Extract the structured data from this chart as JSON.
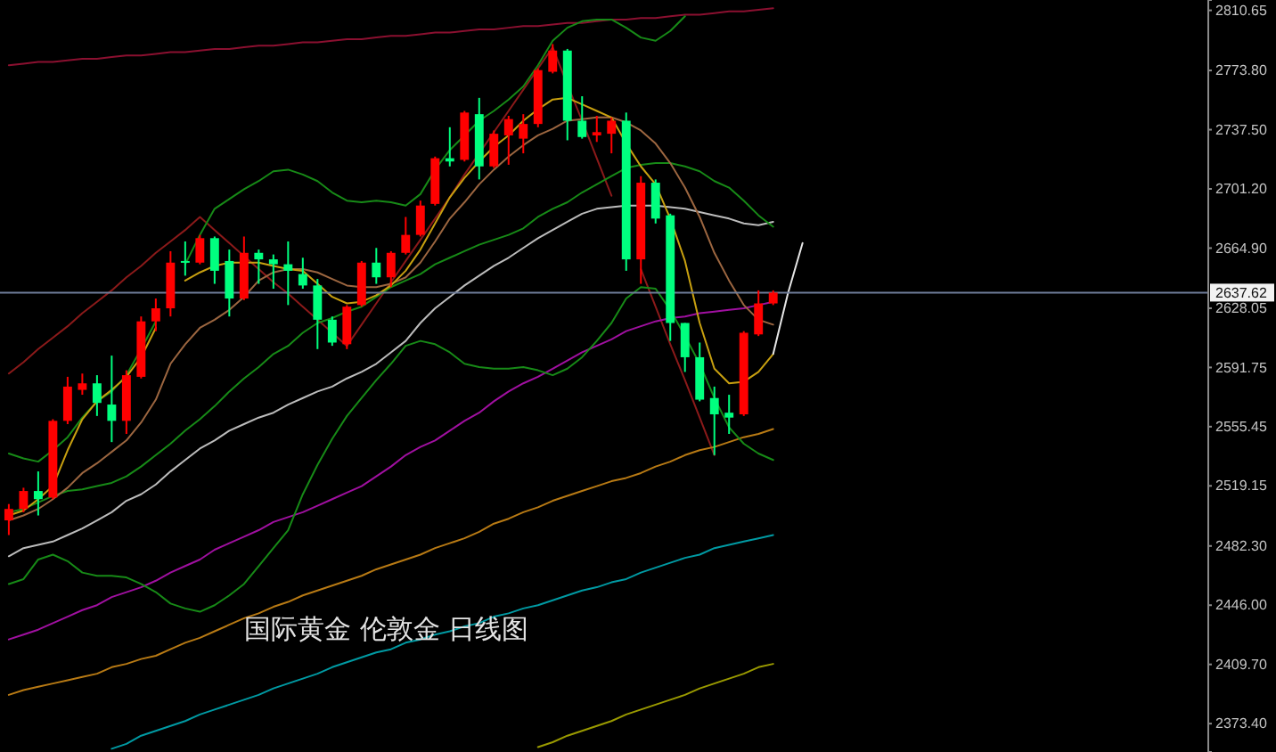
{
  "chart_data": {
    "type": "candlestick",
    "title": "国际黄金 伦敦金 日线图",
    "categories": [
      null,
      null,
      null,
      null,
      null,
      null,
      null,
      null,
      null,
      null,
      null,
      null,
      null,
      null,
      null,
      null,
      null,
      null,
      null,
      null,
      null,
      null,
      null,
      null,
      null,
      null,
      null,
      null,
      null,
      null,
      null,
      null,
      null,
      null,
      null,
      null,
      null,
      null,
      null,
      null,
      null,
      null,
      null,
      null,
      null,
      null,
      null,
      null,
      null,
      null,
      null,
      null,
      null,
      null,
      null,
      null,
      null,
      null,
      null,
      null,
      null,
      null,
      null,
      null,
      null,
      null,
      null,
      null,
      null,
      null,
      null,
      null,
      null,
      null,
      null,
      null,
      null,
      null,
      null,
      null,
      null,
      null
    ],
    "ohlc": [
      [
        2498,
        2508,
        2489,
        2505
      ],
      [
        2505,
        2518,
        2503,
        2516
      ],
      [
        2516,
        2528,
        2501,
        2511
      ],
      [
        2512,
        2560,
        2511,
        2559
      ],
      [
        2559,
        2586,
        2557,
        2580
      ],
      [
        2578,
        2588,
        2575,
        2582
      ],
      [
        2582,
        2587,
        2562,
        2570
      ],
      [
        2569,
        2599,
        2546,
        2559
      ],
      [
        2559,
        2590,
        2551,
        2587
      ],
      [
        2586,
        2623,
        2585,
        2620
      ],
      [
        2620,
        2634,
        2614,
        2628
      ],
      [
        2628,
        2663,
        2623,
        2656
      ],
      [
        2657,
        2669,
        2648,
        2656
      ],
      [
        2656,
        2673,
        2655,
        2671
      ],
      [
        2671,
        2672,
        2643,
        2651
      ],
      [
        2657,
        2664,
        2623,
        2634
      ],
      [
        2634,
        2672,
        2633,
        2662
      ],
      [
        2662,
        2664,
        2643,
        2658
      ],
      [
        2658,
        2661,
        2640,
        2655
      ],
      [
        2655,
        2669,
        2630,
        2651
      ],
      [
        2649,
        2659,
        2640,
        2642
      ],
      [
        2642,
        2646,
        2603,
        2621
      ],
      [
        2621,
        2623,
        2605,
        2607
      ],
      [
        2606,
        2630,
        2603,
        2629
      ],
      [
        2630,
        2657,
        2629,
        2656
      ],
      [
        2656,
        2665,
        2643,
        2647
      ],
      [
        2647,
        2663,
        2641,
        2662
      ],
      [
        2662,
        2684,
        2661,
        2673
      ],
      [
        2673,
        2694,
        2672,
        2691
      ],
      [
        2692,
        2721,
        2691,
        2720
      ],
      [
        2720,
        2739,
        2715,
        2718
      ],
      [
        2719,
        2749,
        2718,
        2748
      ],
      [
        2747,
        2757,
        2707,
        2715
      ],
      [
        2715,
        2737,
        2714,
        2735
      ],
      [
        2734,
        2746,
        2716,
        2744
      ],
      [
        2732,
        2747,
        2723,
        2741
      ],
      [
        2741,
        2775,
        2739,
        2774
      ],
      [
        2773,
        2790,
        2772,
        2786
      ],
      [
        2786,
        2787,
        2731,
        2743
      ],
      [
        2743,
        2758,
        2732,
        2733
      ],
      [
        2734,
        2746,
        2730,
        2736
      ],
      [
        2735,
        2745,
        2723,
        2743
      ],
      [
        2743,
        2748,
        2651,
        2658
      ],
      [
        2658,
        2709,
        2643,
        2705
      ],
      [
        2705,
        2707,
        2680,
        2683
      ],
      [
        2685,
        2686,
        2608,
        2619
      ],
      [
        2619,
        2619,
        2589,
        2598
      ],
      [
        2598,
        2607,
        2571,
        2572
      ],
      [
        2573,
        2580,
        2538,
        2563
      ],
      [
        2564,
        2575,
        2551,
        2561
      ],
      [
        2563,
        2614,
        2562,
        2613
      ],
      [
        2612,
        2639,
        2611,
        2631
      ],
      [
        2631,
        2639,
        2630,
        2637.62
      ],
      null,
      null,
      null,
      null,
      null,
      null,
      null,
      null,
      null,
      null,
      null,
      null,
      null,
      null,
      null,
      null,
      null,
      null,
      null,
      null,
      null,
      null,
      null,
      null,
      null,
      null,
      null,
      null,
      null
    ],
    "colors": [
      "#ff0000",
      "#ff0000",
      "#00ff7f",
      "#ff0000",
      "#ff0000",
      "#ff0000",
      "#00ff7f",
      "#00ff7f",
      "#ff0000",
      "#ff0000",
      "#ff0000",
      "#ff0000",
      "#00ff7f",
      "#ff0000",
      "#00ff7f",
      "#00ff7f",
      "#ff0000",
      "#00ff7f",
      "#00ff7f",
      "#00ff7f",
      "#00ff7f",
      "#00ff7f",
      "#00ff7f",
      "#ff0000",
      "#ff0000",
      "#00ff7f",
      "#ff0000",
      "#ff0000",
      "#ff0000",
      "#ff0000",
      "#00ff7f",
      "#ff0000",
      "#00ff7f",
      "#ff0000",
      "#ff0000",
      "#ff0000",
      "#ff0000",
      "#ff0000",
      "#00ff7f",
      "#00ff7f",
      "#ff0000",
      "#ff0000",
      "#00ff7f",
      "#ff0000",
      "#00ff7f",
      "#00ff7f",
      "#00ff7f",
      "#00ff7f",
      "#00ff7f",
      "#00ff7f",
      "#ff0000",
      "#ff0000",
      "#ff0000",
      null,
      null,
      null,
      null,
      null,
      null,
      null,
      null,
      null,
      null,
      null,
      null,
      null,
      null,
      null,
      null,
      null,
      null,
      null,
      null,
      null,
      null,
      null,
      null,
      null,
      null,
      null,
      null,
      null
    ],
    "series": [
      {
        "type": "line",
        "color": "#8b1030",
        "values": [
          2777,
          2778,
          2779,
          2779,
          2780,
          2781,
          2781,
          2782,
          2783,
          2783,
          2784,
          2785,
          2785,
          2786,
          2787,
          2787,
          2788,
          2789,
          2789,
          2790,
          2791,
          2791,
          2792,
          2793,
          2793,
          2794,
          2795,
          2795,
          2796,
          2797,
          2797,
          2798,
          2799,
          2799,
          2800,
          2801,
          2801,
          2802,
          2803,
          2803,
          2804,
          2805,
          2805,
          2806,
          2806,
          2807,
          2808,
          2808,
          2809,
          2810,
          2810,
          2811,
          2812,
          null,
          null,
          null,
          null,
          null,
          null,
          null,
          null,
          null,
          null,
          null,
          null,
          null,
          null,
          null,
          null,
          null,
          null,
          null,
          null,
          null,
          null,
          null,
          null,
          null,
          null,
          null,
          null,
          null
        ]
      },
      {
        "type": "line",
        "color": "#8b1a1a",
        "values": [
          2588,
          2595,
          2603,
          2610,
          2617,
          2625,
          2632,
          2639,
          2647,
          2654,
          2662,
          2669,
          2676,
          2684,
          2676,
          2668,
          2660,
          2652,
          2644,
          2637,
          2629,
          2621,
          2613,
          2605,
          2618,
          2631,
          2644,
          2657,
          2670,
          2683,
          2696,
          2710,
          2723,
          2736,
          2749,
          2762,
          2775,
          2788,
          2765,
          2743,
          2720,
          2697,
          null,
          2652,
          2629,
          2606,
          2584,
          2561,
          2538,
          null,
          null,
          null,
          null,
          null,
          null,
          null,
          null,
          null,
          null,
          null,
          null,
          null,
          null,
          null,
          null,
          null,
          null,
          null,
          null,
          null,
          null,
          null,
          null,
          null,
          null,
          null,
          null,
          null,
          null,
          null,
          null,
          null
        ]
      },
      {
        "type": "line",
        "color": "#009aa3",
        "values": [
          null,
          null,
          null,
          null,
          null,
          null,
          null,
          2358,
          2361,
          2366,
          2369,
          2372,
          2375,
          2379,
          2382,
          2385,
          2388,
          2391,
          2395,
          2398,
          2401,
          2404,
          2408,
          2411,
          2414,
          2417,
          2419,
          2423,
          2425,
          2428,
          2430,
          2433,
          2435,
          2439,
          2441,
          2444,
          2446,
          2449,
          2452,
          2455,
          2457,
          2460,
          2462,
          2466,
          2469,
          2472,
          2475,
          2477,
          2481,
          2483,
          2485,
          2487,
          2489,
          null,
          null,
          null,
          null,
          null,
          null,
          null,
          null,
          null,
          null,
          null,
          null,
          null,
          null,
          null,
          null,
          null,
          null,
          null,
          null,
          null,
          null,
          null,
          null,
          null,
          null,
          null,
          null,
          null
        ]
      },
      {
        "type": "line",
        "color": "#9a9a00",
        "values": [
          null,
          null,
          null,
          null,
          null,
          null,
          null,
          null,
          null,
          null,
          null,
          null,
          null,
          null,
          null,
          null,
          null,
          null,
          null,
          null,
          null,
          null,
          null,
          null,
          null,
          null,
          null,
          null,
          null,
          null,
          null,
          null,
          null,
          null,
          null,
          null,
          2359,
          2362,
          2366,
          2369,
          2372,
          2375,
          2379,
          2382,
          2385,
          2388,
          2391,
          2395,
          2398,
          2401,
          2404,
          2408,
          2410,
          null,
          null,
          null,
          null,
          null,
          null,
          null,
          null,
          null,
          null,
          null,
          null,
          null,
          null,
          null,
          null,
          null,
          null,
          null,
          null,
          null,
          null,
          null,
          null,
          null,
          null,
          null,
          null,
          null
        ]
      },
      {
        "type": "line",
        "color": "#b87a14",
        "values": [
          2391,
          2394,
          2396,
          2398,
          2400,
          2402,
          2404,
          2408,
          2410,
          2413,
          2415,
          2419,
          2423,
          2426,
          2430,
          2434,
          2438,
          2441,
          2445,
          2448,
          2452,
          2455,
          2458,
          2461,
          2464,
          2468,
          2471,
          2474,
          2477,
          2481,
          2484,
          2487,
          2491,
          2496,
          2499,
          2503,
          2506,
          2510,
          2513,
          2516,
          2519,
          2522,
          2524,
          2527,
          2531,
          2534,
          2538,
          2541,
          2543,
          2546,
          2549,
          2551,
          2554,
          null,
          null,
          null,
          null,
          null,
          null,
          null,
          null,
          null,
          null,
          null,
          null,
          null,
          null,
          null,
          null,
          null,
          null,
          null,
          null,
          null,
          null,
          null,
          null,
          null,
          null,
          null,
          null,
          null
        ]
      },
      {
        "type": "line",
        "color": "#a010a0",
        "values": [
          2425,
          2428,
          2431,
          2435,
          2439,
          2443,
          2446,
          2451,
          2454,
          2457,
          2461,
          2466,
          2470,
          2474,
          2480,
          2484,
          2488,
          2492,
          2497,
          2500,
          2503,
          2507,
          2511,
          2515,
          2519,
          2525,
          2531,
          2538,
          2543,
          2547,
          2553,
          2559,
          2564,
          2571,
          2577,
          2582,
          2586,
          2591,
          2596,
          2601,
          2605,
          2609,
          2614,
          2617,
          2620,
          2622,
          2623,
          2625,
          2626,
          2627,
          2628,
          2630,
          2632,
          null,
          null,
          null,
          null,
          null,
          null,
          null,
          null,
          null,
          null,
          null,
          null,
          null,
          null,
          null,
          null,
          null,
          null,
          null,
          null,
          null,
          null,
          null,
          null,
          null,
          null,
          null,
          null,
          null
        ]
      },
      {
        "type": "line",
        "color": "#bcbcbc",
        "values": [
          2476,
          2481,
          2483,
          2485,
          2489,
          2493,
          2498,
          2503,
          2510,
          2514,
          2520,
          2528,
          2535,
          2542,
          2547,
          2553,
          2557,
          2561,
          2564,
          2569,
          2573,
          2577,
          2580,
          2585,
          2589,
          2594,
          2601,
          2608,
          2619,
          2628,
          2635,
          2642,
          2648,
          2654,
          2659,
          2665,
          2671,
          2676,
          2681,
          2686,
          2689,
          2690,
          2691,
          2691,
          2691,
          2690,
          2689,
          2687,
          2685,
          2683,
          2680,
          2679,
          2681,
          null,
          null,
          null,
          null,
          null,
          null,
          null,
          null,
          null,
          null,
          null,
          null,
          null,
          null,
          null,
          null,
          null,
          null,
          null,
          null,
          null,
          null,
          null,
          null,
          null,
          null,
          null,
          null,
          null
        ]
      },
      {
        "type": "line",
        "color": "#178a17",
        "values": [
          2539,
          2536,
          2534,
          2541,
          2549,
          2561,
          2571,
          2577,
          2587,
          2603,
          2620,
          null,
          2655,
          2673,
          2689,
          2695,
          2701,
          2706,
          2712,
          2713,
          2710,
          2706,
          2699,
          2694,
          2693,
          2694,
          2693,
          2691,
          2698,
          2713,
          2725,
          2734,
          2743,
          2749,
          2756,
          2764,
          2777,
          2792,
          2800,
          2804,
          2805,
          2805,
          2800,
          2794,
          2792,
          2798,
          2807,
          null,
          null,
          null,
          null,
          null,
          null,
          null,
          null,
          null,
          null,
          null,
          null,
          null,
          null,
          null,
          null,
          null,
          null,
          null,
          null,
          null,
          null,
          null,
          null,
          null,
          null,
          null,
          null,
          null,
          null,
          null,
          null,
          null,
          null,
          null
        ]
      },
      {
        "type": "line",
        "color": "#178a17",
        "values": [
          2503,
          2505,
          2509,
          2513,
          2516,
          2517,
          2519,
          2521,
          2525,
          2531,
          2538,
          2545,
          2553,
          2560,
          2568,
          2577,
          2585,
          2592,
          2600,
          2605,
          2613,
          2619,
          2622,
          2626,
          2629,
          2635,
          2641,
          2645,
          2649,
          2655,
          2659,
          2663,
          2667,
          2670,
          2673,
          2677,
          2684,
          2689,
          2693,
          2699,
          2704,
          2709,
          2714,
          2716,
          2717,
          2717,
          2715,
          2712,
          2706,
          2702,
          2694,
          2685,
          2678,
          null,
          null,
          null,
          null,
          null,
          null,
          null,
          null,
          null,
          null,
          null,
          null,
          null,
          null,
          null,
          null,
          null,
          null,
          null,
          null,
          null,
          null,
          null,
          null,
          null,
          null,
          null,
          null,
          null
        ]
      },
      {
        "type": "line",
        "color": "#178a17",
        "values": [
          2459,
          2462,
          2474,
          2477,
          2473,
          2466,
          2464,
          2464,
          2463,
          2459,
          2454,
          2447,
          2444,
          2442,
          2446,
          2452,
          2459,
          2470,
          2481,
          2492,
          2514,
          2532,
          2548,
          2562,
          2573,
          2584,
          2594,
          2605,
          2608,
          2606,
          2601,
          2594,
          2592,
          2591,
          2591,
          2592,
          2590,
          2587,
          2591,
          2598,
          2608,
          2619,
          2634,
          2641,
          2640,
          2627,
          2611,
          2594,
          2573,
          2555,
          2545,
          2539,
          2535,
          null,
          null,
          null,
          null,
          null,
          null,
          null,
          null,
          null,
          null,
          null,
          null,
          null,
          null,
          null,
          null,
          null,
          null,
          null,
          null,
          null,
          null,
          null,
          null,
          null,
          null,
          null,
          null,
          null
        ]
      },
      {
        "type": "line",
        "color": "#9c6640",
        "values": [
          2498,
          2501,
          2505,
          2511,
          2518,
          2527,
          2533,
          2540,
          2547,
          2558,
          2572,
          2594,
          2606,
          2616,
          2621,
          2627,
          2635,
          2645,
          2650,
          2652,
          2652,
          2650,
          2646,
          2642,
          2641,
          2641,
          2643,
          2647,
          2656,
          2669,
          2683,
          2693,
          2704,
          2713,
          2721,
          2728,
          2734,
          2738,
          2743,
          2744,
          2745,
          2745,
          2742,
          2737,
          2729,
          2717,
          2702,
          2684,
          2662,
          2645,
          2630,
          2621,
          2618,
          null,
          null,
          null,
          null,
          null,
          null,
          null,
          null,
          null,
          null,
          null,
          null,
          null,
          null,
          null,
          null,
          null,
          null,
          null,
          null,
          null,
          null,
          null,
          null,
          null,
          null,
          null,
          null,
          null
        ]
      },
      {
        "type": "line",
        "color": "#c8a010",
        "values": [
          2501,
          2504,
          2511,
          2519,
          2541,
          2560,
          2571,
          2578,
          2586,
          2598,
          2616,
          null,
          2645,
          2650,
          2654,
          2656,
          2656,
          2656,
          2654,
          2652,
          2651,
          2643,
          2635,
          2631,
          2632,
          2636,
          2642,
          2651,
          2664,
          2680,
          2696,
          2708,
          2718,
          2727,
          2734,
          2743,
          2750,
          2756,
          2757,
          2753,
          2749,
          2745,
          2729,
          2715,
          2704,
          2683,
          2657,
          2619,
          2591,
          2582,
          2583,
          2589,
          2600,
          null,
          null,
          null,
          null,
          null,
          null,
          null,
          null,
          null,
          null,
          null,
          null,
          null,
          null,
          null,
          null,
          null,
          null,
          null,
          null,
          null,
          null,
          null,
          null,
          null,
          null,
          null,
          null,
          null
        ]
      },
      {
        "type": "line",
        "color": "#e6e6e6",
        "values": [
          null,
          null,
          null,
          null,
          null,
          null,
          null,
          null,
          null,
          null,
          null,
          null,
          null,
          null,
          null,
          null,
          null,
          null,
          null,
          null,
          null,
          null,
          null,
          null,
          null,
          null,
          null,
          null,
          null,
          null,
          null,
          null,
          null,
          null,
          null,
          null,
          null,
          null,
          null,
          null,
          null,
          null,
          null,
          null,
          null,
          null,
          null,
          null,
          null,
          null,
          null,
          null,
          2600,
          2637,
          2668,
          null,
          null,
          null,
          null,
          null,
          null,
          null,
          null,
          null,
          null,
          null,
          null,
          null,
          null,
          null,
          null,
          null,
          null,
          null,
          null,
          null,
          null,
          null,
          null,
          null,
          null,
          null
        ]
      }
    ],
    "ylim": [
      2356,
      2817
    ],
    "yticks": [
      {
        "value": 2373.4,
        "label": "2373.40"
      },
      {
        "value": 2409.7,
        "label": "2409.70"
      },
      {
        "value": 2446,
        "label": "2446.00"
      },
      {
        "value": 2482.3,
        "label": "2482.30"
      },
      2519.15,
      2555.45,
      2591.75,
      2628.05,
      {
        "value": 2664.9,
        "label": "2664.90"
      },
      {
        "value": 2701.2,
        "label": "2701.20"
      },
      {
        "value": 2737.5,
        "label": "2737.50"
      },
      {
        "value": 2773.8,
        "label": "2773.80"
      },
      2810.65
    ],
    "tick_labels": "y",
    "ref_lines": [
      {
        "axis": "y",
        "value": 2637.62,
        "label": "2637.62",
        "color": "#6f7d99"
      }
    ]
  }
}
